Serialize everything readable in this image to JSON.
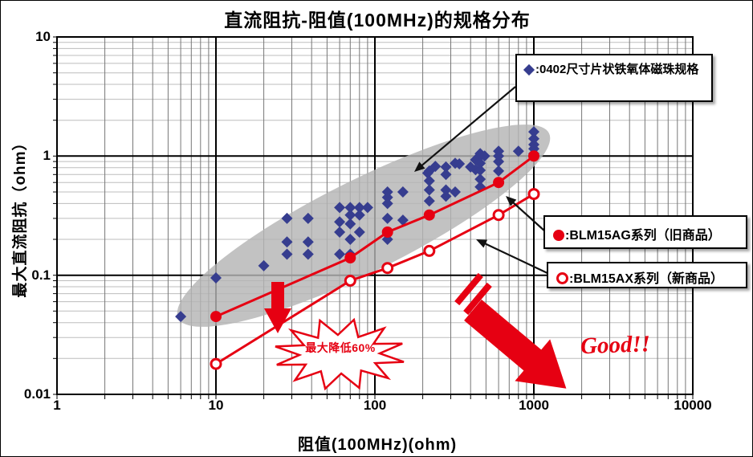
{
  "page": {
    "title": "直流阻抗-阻值(100MHz)的规格分布"
  },
  "axes": {
    "x": {
      "label": "阻值(100MHz)(ohm)",
      "scale": "log",
      "min": 1,
      "max": 10000,
      "ticks": [
        1,
        10,
        100,
        1000,
        10000
      ]
    },
    "y": {
      "label": "最大直流阻抗（ohm）",
      "scale": "log",
      "min": 0.01,
      "max": 10,
      "ticks": [
        10,
        1,
        0.1,
        0.01
      ]
    }
  },
  "legend": [
    {
      "marker": "diamond",
      "symbol": "◆",
      "label": ":0402尺寸片状铁氧体磁珠规格",
      "color": "#363d8f"
    },
    {
      "marker": "filled-circle",
      "symbol": "●",
      "label": ":BLM15AG系列（旧商品）",
      "color": "#e60012"
    },
    {
      "marker": "open-circle",
      "symbol": "○",
      "label": ":BLM15AX系列（新商品）",
      "color": "#e60012"
    }
  ],
  "annotations": {
    "reduction_callout": "最大降低60%",
    "good_label": "Good!!"
  },
  "colors": {
    "scatter_blue": "#363d8f",
    "line_red": "#e60012",
    "highlight_gray": "#b4b4b4",
    "grid_major": "#000000",
    "grid_minor_v": "#777777",
    "grid_minor_h": "#bdbdbd"
  },
  "chart_data": {
    "type": "scatter",
    "title": "直流阻抗-阻值(100MHz)的规格分布",
    "xlabel": "阻值(100MHz)(ohm)",
    "ylabel": "最大直流阻抗（ohm）",
    "xlim": [
      1,
      10000
    ],
    "ylim": [
      0.01,
      10
    ],
    "xscale": "log",
    "yscale": "log",
    "grid": true,
    "series": [
      {
        "name": "0402尺寸片状铁氧体磁珠规格",
        "type": "scatter",
        "marker": "diamond",
        "color": "#363d8f",
        "points": [
          [
            6,
            0.045
          ],
          [
            10,
            0.095
          ],
          [
            20,
            0.12
          ],
          [
            28,
            0.15
          ],
          [
            28,
            0.19
          ],
          [
            28,
            0.3
          ],
          [
            38,
            0.15
          ],
          [
            38,
            0.19
          ],
          [
            38,
            0.3
          ],
          [
            60,
            0.15
          ],
          [
            60,
            0.23
          ],
          [
            60,
            0.28
          ],
          [
            60,
            0.37
          ],
          [
            70,
            0.15
          ],
          [
            70,
            0.2
          ],
          [
            70,
            0.27
          ],
          [
            70,
            0.32
          ],
          [
            70,
            0.37
          ],
          [
            80,
            0.23
          ],
          [
            80,
            0.32
          ],
          [
            80,
            0.37
          ],
          [
            90,
            0.37
          ],
          [
            120,
            0.2
          ],
          [
            120,
            0.3
          ],
          [
            120,
            0.4
          ],
          [
            120,
            0.45
          ],
          [
            120,
            0.5
          ],
          [
            150,
            0.29
          ],
          [
            150,
            0.5
          ],
          [
            215,
            0.72
          ],
          [
            220,
            0.42
          ],
          [
            220,
            0.52
          ],
          [
            220,
            0.62
          ],
          [
            220,
            0.75
          ],
          [
            240,
            0.82
          ],
          [
            280,
            0.46
          ],
          [
            280,
            0.52
          ],
          [
            280,
            0.7
          ],
          [
            280,
            0.81
          ],
          [
            320,
            0.5
          ],
          [
            320,
            0.87
          ],
          [
            340,
            0.86
          ],
          [
            400,
            0.81
          ],
          [
            430,
            0.77
          ],
          [
            430,
            0.93
          ],
          [
            450,
            0.97
          ],
          [
            460,
            0.55
          ],
          [
            460,
            0.64
          ],
          [
            460,
            0.76
          ],
          [
            460,
            0.87
          ],
          [
            460,
            1.05
          ],
          [
            490,
            1.0
          ],
          [
            600,
            0.75
          ],
          [
            600,
            0.9
          ],
          [
            600,
            1.0
          ],
          [
            600,
            1.1
          ],
          [
            800,
            1.1
          ],
          [
            1000,
            1.05
          ],
          [
            1000,
            1.15
          ],
          [
            1000,
            1.25
          ],
          [
            1000,
            1.4
          ],
          [
            1000,
            1.6
          ]
        ]
      },
      {
        "name": "BLM15AG系列（旧商品）",
        "type": "line",
        "marker": "filled-circle",
        "color": "#e60012",
        "points": [
          [
            10,
            0.045
          ],
          [
            70,
            0.14
          ],
          [
            120,
            0.23
          ],
          [
            220,
            0.32
          ],
          [
            600,
            0.6
          ],
          [
            1000,
            1.0
          ]
        ]
      },
      {
        "name": "BLM15AX系列（新商品）",
        "type": "line",
        "marker": "open-circle",
        "color": "#e60012",
        "points": [
          [
            10,
            0.018
          ],
          [
            70,
            0.09
          ],
          [
            120,
            0.115
          ],
          [
            220,
            0.16
          ],
          [
            600,
            0.32
          ],
          [
            1000,
            0.48
          ]
        ]
      }
    ]
  }
}
